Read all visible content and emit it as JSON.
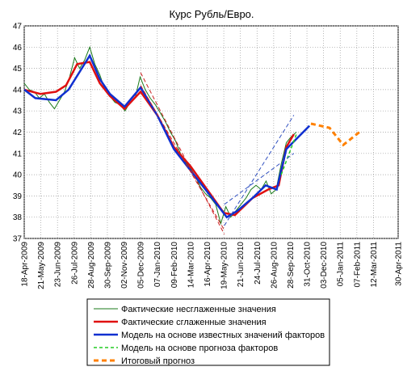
{
  "chart_data": {
    "type": "line",
    "title": "Курс Рубль/Евро.",
    "xlim": [
      "2009-04-18",
      "2011-04-30"
    ],
    "ylim": [
      37,
      47
    ],
    "yticks": [
      37,
      38,
      39,
      40,
      41,
      42,
      43,
      44,
      45,
      46,
      47
    ],
    "xticks": [
      {
        "value": "2009-04-18",
        "label": "18-Apr-2009"
      },
      {
        "value": "2009-05-21",
        "label": "21-May-2009"
      },
      {
        "value": "2009-06-23",
        "label": "23-Jun-2009"
      },
      {
        "value": "2009-07-26",
        "label": "26-Jul-2009"
      },
      {
        "value": "2009-08-28",
        "label": "28-Aug-2009"
      },
      {
        "value": "2009-09-30",
        "label": "30-Sep-2009"
      },
      {
        "value": "2009-11-02",
        "label": "02-Nov-2009"
      },
      {
        "value": "2009-12-05",
        "label": "05-Dec-2009"
      },
      {
        "value": "2010-01-07",
        "label": "07-Jan-2010"
      },
      {
        "value": "2010-02-09",
        "label": "09-Feb-2010"
      },
      {
        "value": "2010-03-14",
        "label": "14-Mar-2010"
      },
      {
        "value": "2010-04-16",
        "label": "16-Apr-2010"
      },
      {
        "value": "2010-05-19",
        "label": "19-May-2010"
      },
      {
        "value": "2010-06-21",
        "label": "21-Jun-2010"
      },
      {
        "value": "2010-07-24",
        "label": "24-Jul-2010"
      },
      {
        "value": "2010-08-26",
        "label": "26-Aug-2010"
      },
      {
        "value": "2010-09-28",
        "label": "28-Sep-2010"
      },
      {
        "value": "2010-10-31",
        "label": "31-Oct-2010"
      },
      {
        "value": "2010-12-03",
        "label": "03-Dec-2010"
      },
      {
        "value": "2011-01-05",
        "label": "05-Jan-2011"
      },
      {
        "value": "2011-02-07",
        "label": "07-Feb-2011"
      },
      {
        "value": "2011-03-12",
        "label": "12-Mar-2011"
      },
      {
        "value": "2011-04-30",
        "label": "30-Apr-2011"
      }
    ],
    "grid": true,
    "series": [
      {
        "name": "Фактические несглаженные значения",
        "color": "#1a7a1a",
        "width": 1,
        "dash": "none",
        "x": [
          "2009-04-18",
          "2009-04-28",
          "2009-05-08",
          "2009-05-18",
          "2009-05-28",
          "2009-06-07",
          "2009-06-17",
          "2009-06-27",
          "2009-07-07",
          "2009-07-17",
          "2009-07-27",
          "2009-08-06",
          "2009-08-16",
          "2009-08-26",
          "2009-09-05",
          "2009-09-15",
          "2009-09-25",
          "2009-10-05",
          "2009-10-15",
          "2009-10-25",
          "2009-11-04",
          "2009-11-14",
          "2009-11-24",
          "2009-12-04",
          "2009-12-14",
          "2009-12-24",
          "2010-01-03",
          "2010-01-13",
          "2010-01-23",
          "2010-02-02",
          "2010-02-12",
          "2010-02-22",
          "2010-03-04",
          "2010-03-14",
          "2010-03-24",
          "2010-04-03",
          "2010-04-13",
          "2010-04-23",
          "2010-05-03",
          "2010-05-13",
          "2010-05-23",
          "2010-06-02",
          "2010-06-12",
          "2010-06-22",
          "2010-07-02",
          "2010-07-12",
          "2010-07-22",
          "2010-08-01",
          "2010-08-11",
          "2010-08-21",
          "2010-08-31",
          "2010-09-10",
          "2010-09-20",
          "2010-09-30",
          "2010-10-10"
        ],
        "values": [
          44.3,
          44.0,
          43.9,
          43.6,
          43.8,
          43.4,
          43.1,
          43.5,
          43.9,
          44.6,
          45.5,
          45.0,
          45.4,
          46.0,
          45.2,
          44.7,
          44.0,
          43.7,
          43.4,
          43.3,
          43.0,
          43.4,
          43.6,
          44.6,
          44.0,
          43.6,
          43.3,
          42.9,
          42.5,
          42.0,
          41.6,
          41.0,
          40.6,
          40.3,
          39.9,
          39.4,
          39.1,
          38.9,
          38.6,
          37.7,
          38.5,
          38.0,
          38.3,
          38.6,
          38.9,
          39.3,
          39.5,
          39.3,
          39.7,
          39.1,
          39.3,
          40.5,
          41.5,
          41.8,
          42.0
        ]
      },
      {
        "name": "Фактические сглаженные значения",
        "color": "#e01010",
        "width": 2.5,
        "dash": "none",
        "x": [
          "2009-04-18",
          "2009-05-20",
          "2009-06-20",
          "2009-07-10",
          "2009-08-01",
          "2009-08-26",
          "2009-09-15",
          "2009-10-05",
          "2009-11-03",
          "2009-12-05",
          "2010-01-07",
          "2010-02-09",
          "2010-03-14",
          "2010-04-16",
          "2010-05-19",
          "2010-06-10",
          "2010-07-15",
          "2010-08-15",
          "2010-09-05",
          "2010-09-20",
          "2010-10-05"
        ],
        "values": [
          44.0,
          43.8,
          43.9,
          44.2,
          45.2,
          45.3,
          44.3,
          43.7,
          43.1,
          43.9,
          42.8,
          41.3,
          40.4,
          39.3,
          38.2,
          38.1,
          38.9,
          39.3,
          39.5,
          41.3,
          41.9
        ]
      },
      {
        "name": "Модель на основе известных значений факторов",
        "color": "#1030d0",
        "width": 2.5,
        "dash": "none",
        "x": [
          "2009-04-18",
          "2009-05-10",
          "2009-06-20",
          "2009-07-15",
          "2009-08-26",
          "2009-09-15",
          "2009-10-05",
          "2009-11-03",
          "2009-12-05",
          "2010-01-07",
          "2010-02-09",
          "2010-03-14",
          "2010-04-16",
          "2010-05-25",
          "2010-06-15",
          "2010-07-15",
          "2010-08-10",
          "2010-09-01",
          "2010-09-20",
          "2010-11-05"
        ],
        "values": [
          44.0,
          43.6,
          43.5,
          44.0,
          45.6,
          44.5,
          43.8,
          43.2,
          44.1,
          42.8,
          41.2,
          40.2,
          39.2,
          38.0,
          38.3,
          38.9,
          39.5,
          39.3,
          41.2,
          42.3
        ]
      },
      {
        "name": "Модель на основе прогноза факторов",
        "color": "#22cc22",
        "width": 1.5,
        "dash": "4 3",
        "x": [
          "2010-09-10",
          "2010-10-10"
        ],
        "values": [
          40.0,
          41.9
        ]
      },
      {
        "name": "Итоговый прогноз",
        "color": "#ff8000",
        "width": 3,
        "dash": "6 4",
        "x": [
          "2010-11-08",
          "2010-12-15",
          "2011-01-11",
          "2011-02-12"
        ],
        "values": [
          42.4,
          42.2,
          41.4,
          42.0
        ]
      },
      {
        "color": "#cc2020",
        "width": 1,
        "dash": "5 3",
        "x": [
          "2009-12-05",
          "2010-05-20"
        ],
        "values": [
          44.8,
          37.2
        ]
      },
      {
        "color": "#cc2020",
        "width": 1,
        "dash": "5 3",
        "x": [
          "2009-12-05",
          "2010-05-20"
        ],
        "values": [
          44.2,
          37.4
        ]
      },
      {
        "color": "#3050c0",
        "width": 1,
        "dash": "5 3",
        "x": [
          "2010-05-20",
          "2010-10-05"
        ],
        "values": [
          37.6,
          42.8
        ]
      },
      {
        "color": "#3050c0",
        "width": 1,
        "dash": "5 3",
        "x": [
          "2010-05-20",
          "2010-10-05"
        ],
        "values": [
          38.6,
          41.0
        ]
      }
    ]
  }
}
